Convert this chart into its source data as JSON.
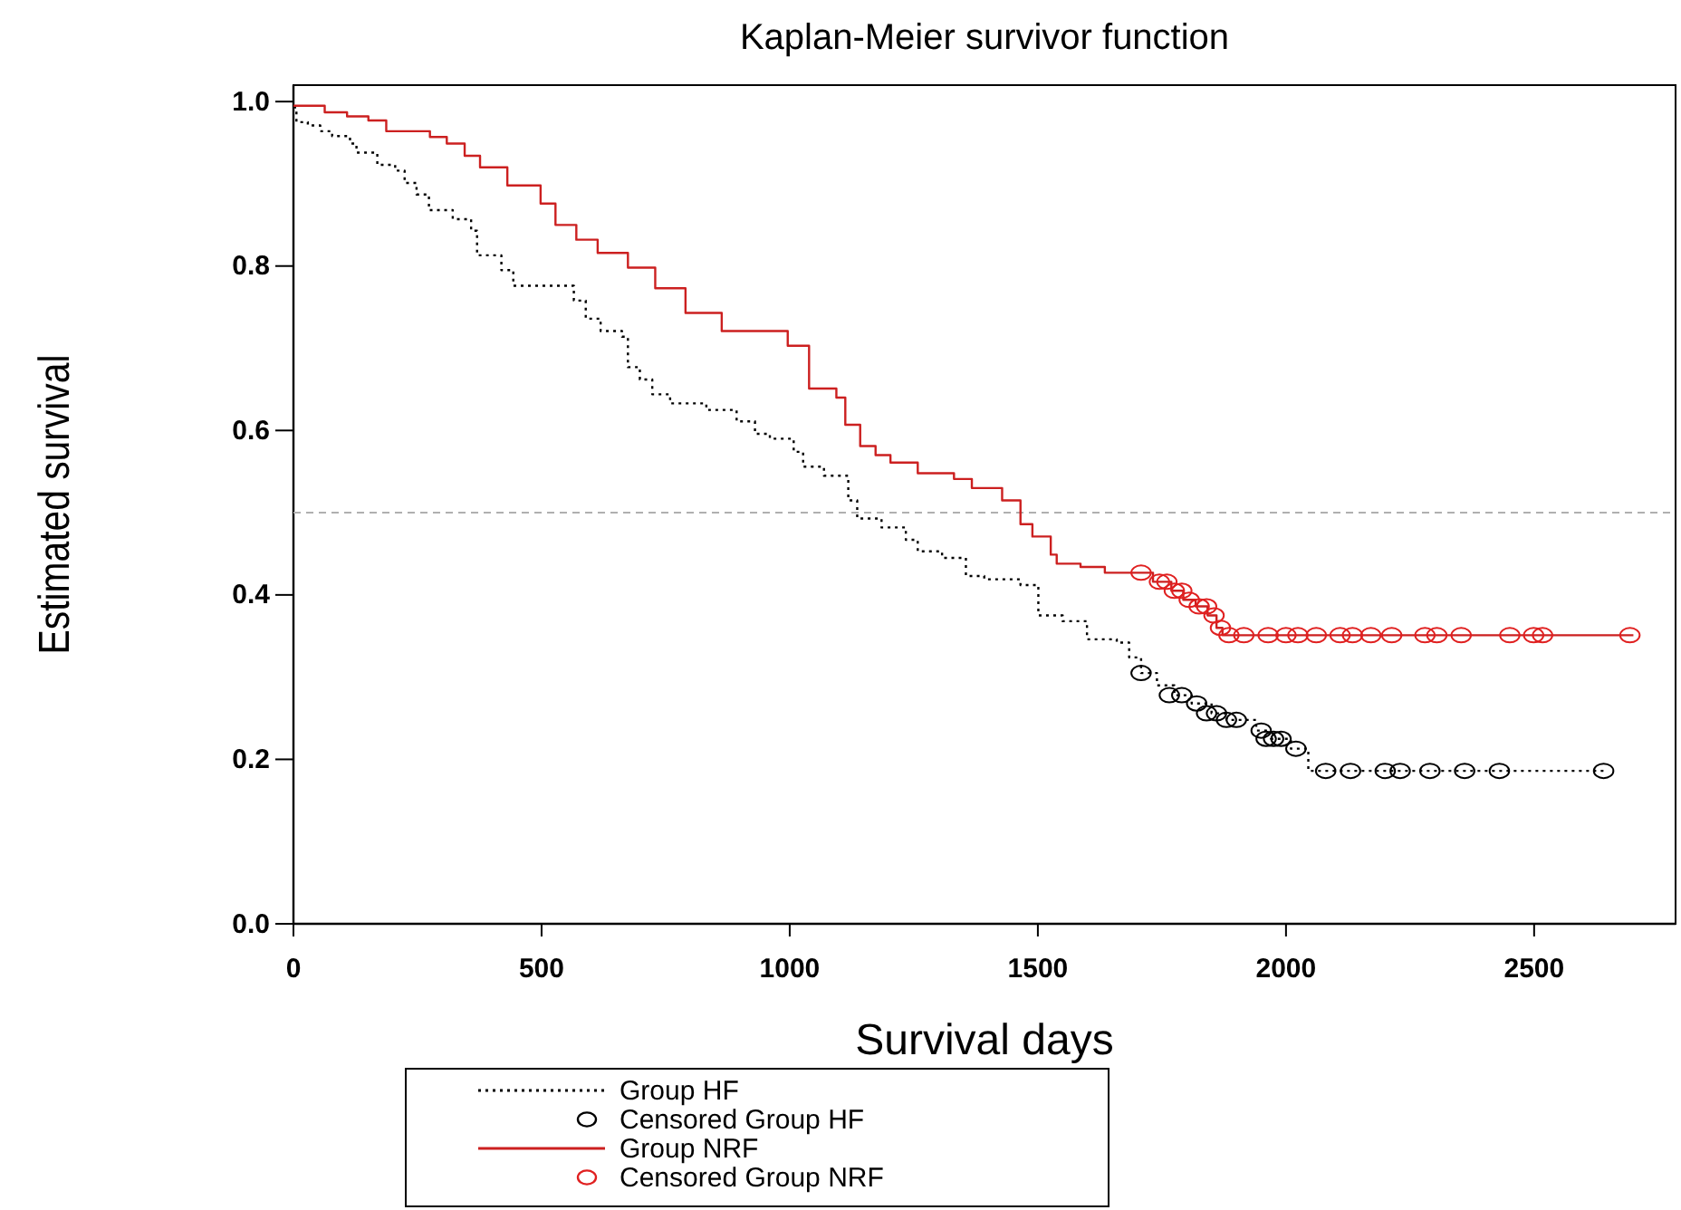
{
  "chart_data": {
    "type": "step",
    "title": "Kaplan-Meier survivor function",
    "xlabel": "Survival days",
    "ylabel": "Estimated survival",
    "xlim": [
      0,
      2785
    ],
    "xticks": [
      0,
      500,
      1000,
      1500,
      2000,
      2500
    ],
    "ylim": [
      0,
      1.02
    ],
    "yticks": [
      {
        "value": 0,
        "label": "0.0"
      },
      0.2,
      0.4,
      0.6,
      0.8,
      {
        "value": 1,
        "label": "1.0"
      }
    ],
    "grid": false,
    "legend": "bottom",
    "ref_lines": [
      {
        "axis": "y",
        "value": 0.5,
        "color": "#b0b0b0",
        "line_style": "dashed"
      }
    ],
    "series": [
      {
        "name": "Group HF",
        "color": "#000000",
        "line_style": "dotted",
        "x": [
          0,
          6,
          29,
          54,
          78,
          114,
          127,
          169,
          205,
          224,
          248,
          273,
          321,
          358,
          370,
          419,
          443,
          565,
          589,
          619,
          662,
          674,
          698,
          723,
          759,
          832,
          893,
          930,
          960,
          1008,
          1027,
          1069,
          1118,
          1136,
          1185,
          1234,
          1258,
          1307,
          1355,
          1392,
          1465,
          1501,
          1550,
          1599,
          1659,
          1684,
          1708,
          1740,
          1775,
          1810,
          1850,
          1880,
          1940,
          1970,
          2010,
          2045,
          2640
        ],
        "values": [
          0.993,
          0.975,
          0.971,
          0.964,
          0.958,
          0.949,
          0.938,
          0.923,
          0.916,
          0.901,
          0.887,
          0.868,
          0.857,
          0.843,
          0.813,
          0.795,
          0.776,
          0.758,
          0.736,
          0.721,
          0.714,
          0.677,
          0.662,
          0.644,
          0.633,
          0.625,
          0.611,
          0.596,
          0.59,
          0.574,
          0.556,
          0.545,
          0.515,
          0.493,
          0.482,
          0.467,
          0.453,
          0.445,
          0.423,
          0.419,
          0.412,
          0.375,
          0.368,
          0.346,
          0.342,
          0.324,
          0.305,
          0.29,
          0.278,
          0.268,
          0.256,
          0.248,
          0.235,
          0.225,
          0.213,
          0.186,
          0.186
        ]
      },
      {
        "name": "Censored Group HF",
        "type": "scatter",
        "color": "#000000",
        "marker": "circle",
        "x": [
          1708,
          1765,
          1790,
          1820,
          1840,
          1860,
          1880,
          1900,
          1950,
          1960,
          1975,
          1990,
          2020,
          2080,
          2130,
          2200,
          2230,
          2290,
          2360,
          2430,
          2640
        ],
        "values": [
          0.305,
          0.278,
          0.278,
          0.268,
          0.256,
          0.256,
          0.248,
          0.248,
          0.235,
          0.225,
          0.225,
          0.225,
          0.213,
          0.186,
          0.186,
          0.186,
          0.186,
          0.186,
          0.186,
          0.186,
          0.186
        ]
      },
      {
        "name": "Group NRF",
        "color": "#cc2020",
        "line_style": "solid",
        "x": [
          0,
          63,
          108,
          151,
          187,
          275,
          309,
          345,
          376,
          431,
          498,
          528,
          570,
          613,
          674,
          729,
          790,
          863,
          996,
          1039,
          1094,
          1112,
          1142,
          1173,
          1203,
          1258,
          1331,
          1367,
          1428,
          1465,
          1489,
          1526,
          1538,
          1586,
          1635,
          1732,
          1769,
          1793,
          1818,
          1842,
          1860,
          1872,
          2700
        ],
        "values": [
          0.995,
          0.987,
          0.982,
          0.977,
          0.964,
          0.957,
          0.949,
          0.934,
          0.92,
          0.898,
          0.876,
          0.85,
          0.832,
          0.816,
          0.798,
          0.773,
          0.743,
          0.721,
          0.703,
          0.651,
          0.64,
          0.607,
          0.581,
          0.57,
          0.561,
          0.548,
          0.541,
          0.53,
          0.515,
          0.486,
          0.471,
          0.449,
          0.438,
          0.434,
          0.427,
          0.416,
          0.405,
          0.394,
          0.386,
          0.375,
          0.36,
          0.351,
          0.351
        ]
      },
      {
        "name": "Censored Group NRF",
        "type": "scatter",
        "color": "#e02020",
        "marker": "circle",
        "x": [
          1708,
          1745,
          1760,
          1775,
          1790,
          1805,
          1825,
          1840,
          1855,
          1868,
          1885,
          1915,
          1964,
          2000,
          2024,
          2061,
          2109,
          2134,
          2171,
          2213,
          2280,
          2304,
          2353,
          2451,
          2499,
          2517,
          2693
        ],
        "values": [
          0.427,
          0.416,
          0.416,
          0.405,
          0.405,
          0.394,
          0.386,
          0.386,
          0.375,
          0.36,
          0.351,
          0.351,
          0.351,
          0.351,
          0.351,
          0.351,
          0.351,
          0.351,
          0.351,
          0.351,
          0.351,
          0.351,
          0.351,
          0.351,
          0.351,
          0.351,
          0.351
        ]
      }
    ]
  }
}
